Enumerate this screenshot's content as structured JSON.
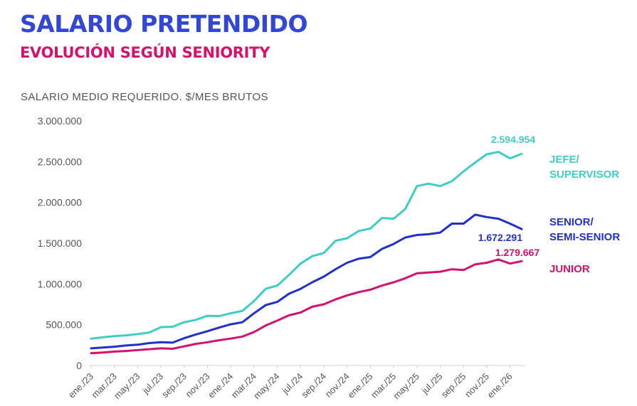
{
  "chart_data": {
    "type": "line",
    "title": "SALARIO PRETENDIDO",
    "subtitle": "EVOLUCIÓN SEGÚN SENIORITY",
    "ylabel": "SALARIO MEDIO REQUERIDO. $/MES BRUTOS",
    "xlabel": "",
    "ylim": [
      0,
      3000000
    ],
    "yticks": [
      0,
      500000,
      1000000,
      1500000,
      2000000,
      2500000,
      3000000
    ],
    "ytick_labels": [
      "0",
      "500.000",
      "1.000.000",
      "1.500.000",
      "2.000.000",
      "2.500.000",
      "3.000.000"
    ],
    "grid": false,
    "x_tick_labels": [
      "ene./23",
      "mar./23",
      "may./23",
      "jul./23",
      "sep./23",
      "nov./23",
      "ene./24",
      "mar./24",
      "may./24",
      "jul./24",
      "sep./24",
      "nov./24",
      "ene./25",
      "mar./25",
      "may./25",
      "jul./25",
      "sep./25",
      "nov./25",
      "ene./26"
    ],
    "x_tick_every": 2,
    "series": [
      {
        "name": "JEFE/ SUPERVISOR",
        "label_lines": [
          "JEFE/",
          "SUPERVISOR"
        ],
        "color": "#3ecdc4",
        "end_label": "2.594.954",
        "values": [
          330000,
          345000,
          360000,
          370000,
          385000,
          405000,
          470000,
          475000,
          530000,
          560000,
          610000,
          605000,
          640000,
          670000,
          790000,
          940000,
          980000,
          1110000,
          1250000,
          1340000,
          1380000,
          1530000,
          1560000,
          1650000,
          1680000,
          1810000,
          1800000,
          1920000,
          2200000,
          2230000,
          2200000,
          2260000,
          2380000,
          2490000,
          2590000,
          2620000,
          2540000,
          2594954
        ]
      },
      {
        "name": "SENIOR/ SEMI-SENIOR",
        "label_lines": [
          "SENIOR/",
          "SEMI-SENIOR"
        ],
        "color": "#2130cc",
        "end_label": "1.672.291",
        "values": [
          210000,
          220000,
          230000,
          245000,
          255000,
          275000,
          285000,
          280000,
          335000,
          380000,
          420000,
          465000,
          505000,
          530000,
          640000,
          740000,
          780000,
          880000,
          940000,
          1020000,
          1090000,
          1180000,
          1260000,
          1310000,
          1330000,
          1430000,
          1490000,
          1570000,
          1600000,
          1610000,
          1630000,
          1740000,
          1740000,
          1850000,
          1820000,
          1800000,
          1740000,
          1672291
        ]
      },
      {
        "name": "JUNIOR",
        "label_lines": [
          "JUNIOR"
        ],
        "color": "#d4126e",
        "end_label": "1.279.667",
        "values": [
          150000,
          160000,
          170000,
          178000,
          188000,
          200000,
          210000,
          205000,
          235000,
          265000,
          285000,
          310000,
          330000,
          355000,
          410000,
          490000,
          550000,
          615000,
          650000,
          720000,
          750000,
          810000,
          860000,
          900000,
          930000,
          980000,
          1020000,
          1070000,
          1130000,
          1140000,
          1150000,
          1180000,
          1170000,
          1240000,
          1260000,
          1300000,
          1250000,
          1279667
        ]
      }
    ]
  }
}
